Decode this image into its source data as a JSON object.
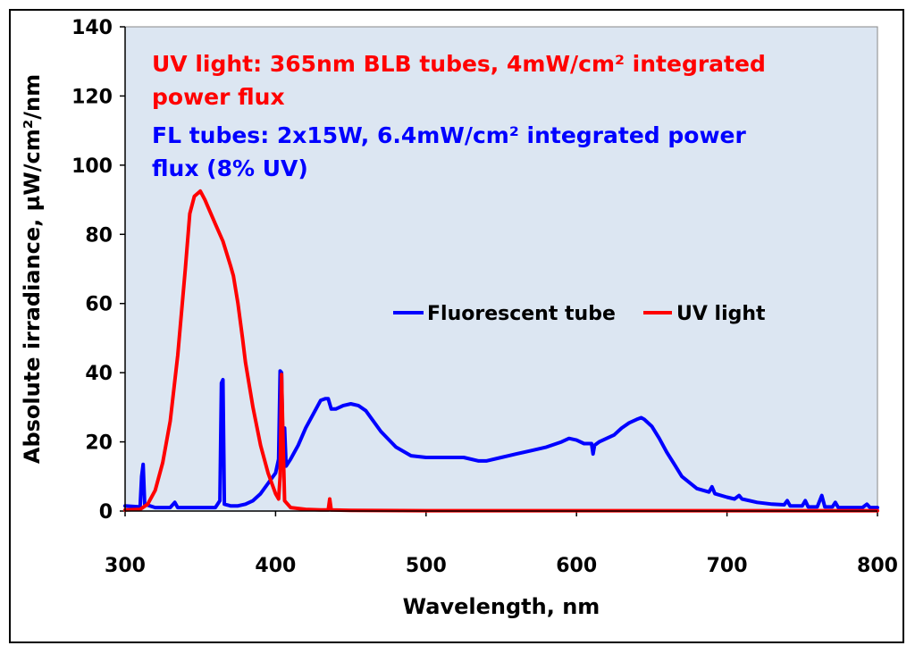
{
  "chart_data": {
    "type": "line",
    "title": "",
    "xlabel": "Wavelength, nm",
    "ylabel": "Absolute irradiance, µW/cm²/nm",
    "xlim": [
      300,
      800
    ],
    "ylim": [
      0,
      140
    ],
    "x_ticks": [
      "300",
      "400",
      "500",
      "600",
      "700",
      "800"
    ],
    "y_ticks": [
      "0",
      "20",
      "40",
      "60",
      "80",
      "100",
      "120",
      "140"
    ],
    "grid": false,
    "plot_background": "#dce6f2",
    "legend_placement": "center-right",
    "annotations": [
      {
        "text": "UV light:  365nm BLB tubes, 4mW/cm² integrated",
        "color": "#ff0000"
      },
      {
        "text": "power flux",
        "color": "#ff0000"
      },
      {
        "text": "FL tubes: 2x15W, 6.4mW/cm² integrated power",
        "color": "#0000ff"
      },
      {
        "text": "flux (8% UV)",
        "color": "#0000ff"
      }
    ],
    "series": [
      {
        "name": "Fluorescent tube",
        "color": "#0000ff",
        "points": [
          [
            300,
            1.5
          ],
          [
            310,
            1.2
          ],
          [
            311,
            10
          ],
          [
            312,
            13.5
          ],
          [
            313,
            2
          ],
          [
            320,
            1
          ],
          [
            330,
            1
          ],
          [
            333,
            2.5
          ],
          [
            335,
            1
          ],
          [
            340,
            1
          ],
          [
            350,
            1
          ],
          [
            360,
            1
          ],
          [
            363,
            3
          ],
          [
            364,
            37
          ],
          [
            365,
            38
          ],
          [
            366,
            2
          ],
          [
            370,
            1.5
          ],
          [
            375,
            1.5
          ],
          [
            380,
            2
          ],
          [
            385,
            3
          ],
          [
            390,
            5
          ],
          [
            395,
            8
          ],
          [
            400,
            11
          ],
          [
            402,
            15
          ],
          [
            403,
            40.5
          ],
          [
            404,
            40
          ],
          [
            405,
            15
          ],
          [
            406,
            24
          ],
          [
            407,
            13
          ],
          [
            410,
            15
          ],
          [
            415,
            19
          ],
          [
            420,
            24
          ],
          [
            425,
            28
          ],
          [
            430,
            32
          ],
          [
            433,
            32.5
          ],
          [
            435,
            32.5
          ],
          [
            437,
            29.5
          ],
          [
            440,
            29.5
          ],
          [
            445,
            30.5
          ],
          [
            450,
            31
          ],
          [
            455,
            30.5
          ],
          [
            460,
            29
          ],
          [
            470,
            23
          ],
          [
            480,
            18.5
          ],
          [
            490,
            16
          ],
          [
            500,
            15.5
          ],
          [
            510,
            15.5
          ],
          [
            525,
            15.5
          ],
          [
            535,
            14.5
          ],
          [
            540,
            14.5
          ],
          [
            550,
            15.5
          ],
          [
            560,
            16.5
          ],
          [
            570,
            17.5
          ],
          [
            580,
            18.5
          ],
          [
            590,
            20
          ],
          [
            595,
            21
          ],
          [
            600,
            20.5
          ],
          [
            605,
            19.5
          ],
          [
            610,
            19.5
          ],
          [
            611,
            16.5
          ],
          [
            612,
            19
          ],
          [
            615,
            20
          ],
          [
            620,
            21
          ],
          [
            625,
            22
          ],
          [
            630,
            24
          ],
          [
            635,
            25.5
          ],
          [
            640,
            26.5
          ],
          [
            643,
            27
          ],
          [
            645,
            26.5
          ],
          [
            650,
            24.5
          ],
          [
            655,
            21
          ],
          [
            660,
            17
          ],
          [
            665,
            13.5
          ],
          [
            670,
            10
          ],
          [
            680,
            6.5
          ],
          [
            688,
            5.5
          ],
          [
            690,
            7
          ],
          [
            692,
            5
          ],
          [
            700,
            4
          ],
          [
            705,
            3.5
          ],
          [
            708,
            4.5
          ],
          [
            710,
            3.5
          ],
          [
            720,
            2.5
          ],
          [
            730,
            2
          ],
          [
            738,
            1.8
          ],
          [
            740,
            3
          ],
          [
            742,
            1.5
          ],
          [
            750,
            1.5
          ],
          [
            752,
            3
          ],
          [
            754,
            1.2
          ],
          [
            760,
            1.2
          ],
          [
            763,
            4.5
          ],
          [
            765,
            1.2
          ],
          [
            770,
            1.2
          ],
          [
            772,
            2.5
          ],
          [
            774,
            1
          ],
          [
            780,
            1
          ],
          [
            790,
            1
          ],
          [
            793,
            2
          ],
          [
            795,
            1
          ],
          [
            800,
            1
          ]
        ]
      },
      {
        "name": "UV light",
        "color": "#ff0000",
        "points": [
          [
            300,
            0.3
          ],
          [
            310,
            0.5
          ],
          [
            315,
            2
          ],
          [
            320,
            6
          ],
          [
            325,
            14
          ],
          [
            330,
            26
          ],
          [
            335,
            45
          ],
          [
            340,
            70
          ],
          [
            343,
            86
          ],
          [
            346,
            91
          ],
          [
            350,
            92.5
          ],
          [
            353,
            90
          ],
          [
            356,
            87
          ],
          [
            360,
            83
          ],
          [
            365,
            78
          ],
          [
            370,
            71
          ],
          [
            372,
            68
          ],
          [
            375,
            60
          ],
          [
            378,
            50
          ],
          [
            380,
            43
          ],
          [
            385,
            30
          ],
          [
            390,
            19
          ],
          [
            395,
            11
          ],
          [
            400,
            5
          ],
          [
            402,
            3.5
          ],
          [
            403,
            10
          ],
          [
            404,
            39.5
          ],
          [
            405,
            20
          ],
          [
            406,
            3
          ],
          [
            410,
            1
          ],
          [
            420,
            0.5
          ],
          [
            430,
            0.3
          ],
          [
            435,
            0.3
          ],
          [
            436,
            3.5
          ],
          [
            437,
            0.3
          ],
          [
            450,
            0.2
          ],
          [
            500,
            0.1
          ],
          [
            600,
            0.1
          ],
          [
            700,
            0.1
          ],
          [
            800,
            0.1
          ]
        ]
      }
    ]
  }
}
